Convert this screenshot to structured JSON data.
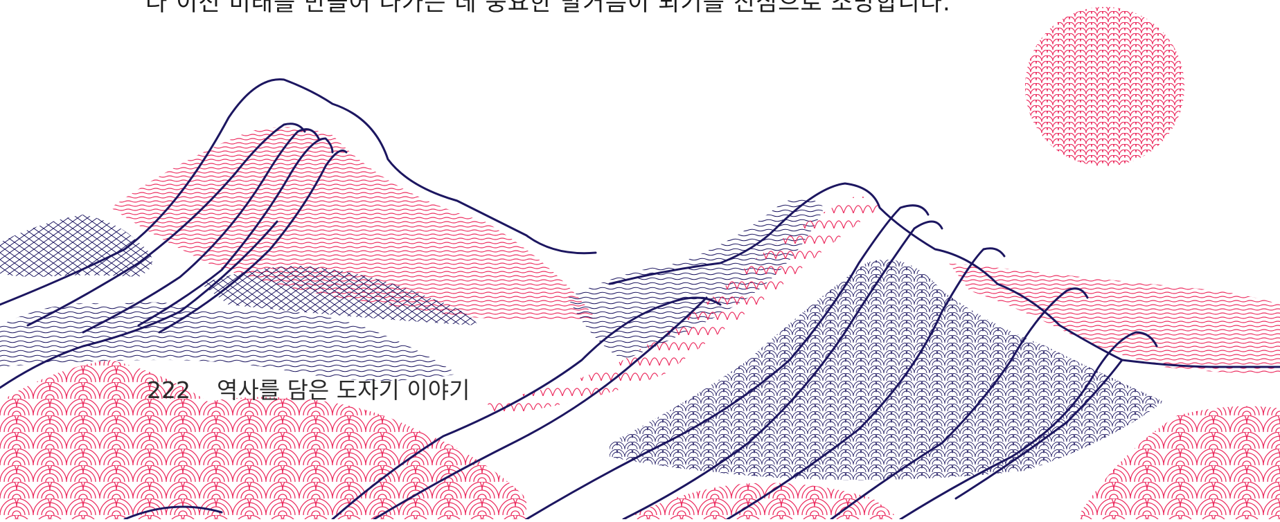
{
  "top_text": "다 이전 미래를 만들어 나가는 데 중요한 발거름이 되기를 진심으로 소망합니다.",
  "folio": {
    "page_number": "222",
    "book_title": "역사를 담은 도자기 이야기"
  },
  "colors": {
    "navy": "#1c1660",
    "pink": "#ec2c5f",
    "background": "#ffffff"
  }
}
